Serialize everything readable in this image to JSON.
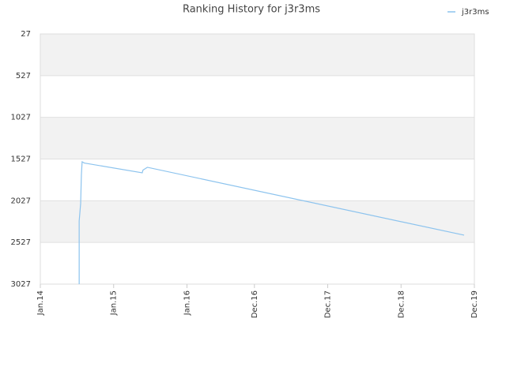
{
  "chart_data": {
    "type": "line",
    "title": "Ranking History for j3r3ms",
    "x": [
      2014.53,
      2014.53,
      2014.55,
      2014.56,
      2014.57,
      2014.6,
      2015.39,
      2015.4,
      2015.46,
      2019.78
    ],
    "series": [
      {
        "name": "j3r3ms",
        "color": "#8cc3ee",
        "values": [
          3027,
          2270,
          2060,
          1720,
          1560,
          1575,
          1692,
          1660,
          1626,
          2440
        ]
      }
    ],
    "xlim": [
      2014.0,
      2019.92
    ],
    "xticks": [
      {
        "value": 2014.0,
        "label": "Jan.14"
      },
      {
        "value": 2015.0,
        "label": "Jan.15"
      },
      {
        "value": 2016.0,
        "label": "Jan.16"
      },
      {
        "value": 2016.92,
        "label": "Dec.16"
      },
      {
        "value": 2017.92,
        "label": "Dec.17"
      },
      {
        "value": 2018.92,
        "label": "Dec.18"
      },
      {
        "value": 2019.92,
        "label": "Dec.19"
      }
    ],
    "ylim": [
      27,
      3027
    ],
    "y_reversed": true,
    "yticks": [
      27,
      527,
      1027,
      1527,
      2027,
      2527,
      3027
    ],
    "grid": true,
    "legend": "top-right"
  }
}
